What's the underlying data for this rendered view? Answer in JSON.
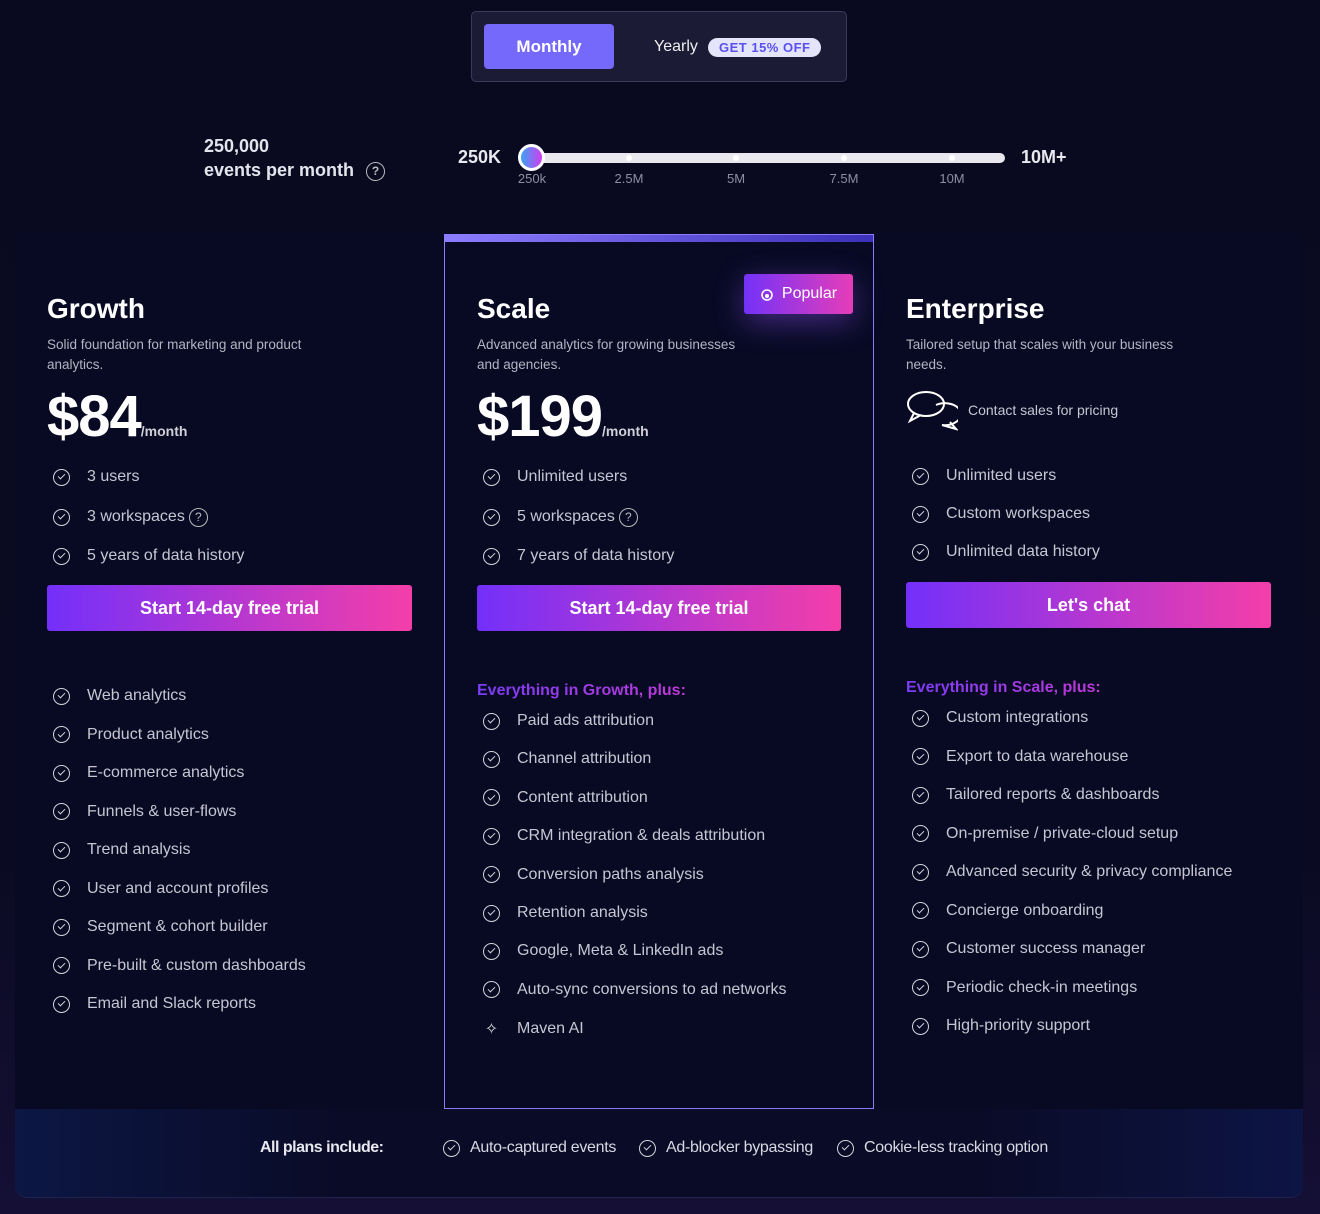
{
  "billing": {
    "monthly": "Monthly",
    "yearly": "Yearly",
    "yearly_badge": "GET 15% OFF",
    "selected": "Monthly"
  },
  "events": {
    "value": "250,000",
    "label": "events per month",
    "help_icon": "question-circle-icon"
  },
  "slider": {
    "min_label": "250K",
    "max_label": "10M+",
    "ticks": [
      "250k",
      "2.5M",
      "5M",
      "7.5M",
      "10M"
    ],
    "current": "250k",
    "position_fraction": 0
  },
  "colors": {
    "accent": "#7569fb",
    "cta_start": "#7330fa",
    "cta_end": "#f43ea9",
    "background": "#0a0b22"
  },
  "plans": [
    {
      "name": "Growth",
      "description": "Solid foundation for marketing and product analytics.",
      "price": "$84",
      "period": "/month",
      "limits": [
        "3 users",
        "3 workspaces",
        "5 years of data history"
      ],
      "cta": "Start 14-day free trial",
      "features": [
        "Web analytics",
        "Product analytics",
        "E-commerce analytics",
        "Funnels & user-flows",
        "Trend analysis",
        "User and account profiles",
        "Segment & cohort builder",
        "Pre-built & custom dashboards",
        "Email and Slack reports"
      ]
    },
    {
      "name": "Scale",
      "badge": "Popular",
      "description": "Advanced analytics for growing businesses and agencies.",
      "price": "$199",
      "period": "/month",
      "limits": [
        "Unlimited users",
        "5 workspaces",
        "7 years of data history"
      ],
      "cta": "Start 14-day free trial",
      "plus_heading": "Everything in Growth, plus:",
      "features": [
        "Paid ads attribution",
        "Channel attribution",
        "Content attribution",
        "CRM integration & deals attribution",
        "Conversion paths analysis",
        "Retention analysis",
        "Google, Meta & LinkedIn ads",
        "Auto-sync conversions to ad networks",
        "Maven AI"
      ]
    },
    {
      "name": "Enterprise",
      "description": "Tailored setup that scales with your business needs.",
      "contact": "Contact sales for pricing",
      "limits": [
        "Unlimited users",
        "Custom workspaces",
        "Unlimited data history"
      ],
      "cta": "Let's chat",
      "plus_heading": "Everything in Scale, plus:",
      "features": [
        "Custom integrations",
        "Export to data warehouse",
        "Tailored reports & dashboards",
        "On-premise / private-cloud setup",
        "Advanced security & privacy compliance",
        "Concierge onboarding",
        "Customer success manager",
        "Periodic check-in meetings",
        "High-priority support"
      ]
    }
  ],
  "footer": {
    "label": "All plans include:",
    "items": [
      "Auto-captured events",
      "Ad-blocker bypassing",
      "Cookie-less tracking option"
    ]
  }
}
